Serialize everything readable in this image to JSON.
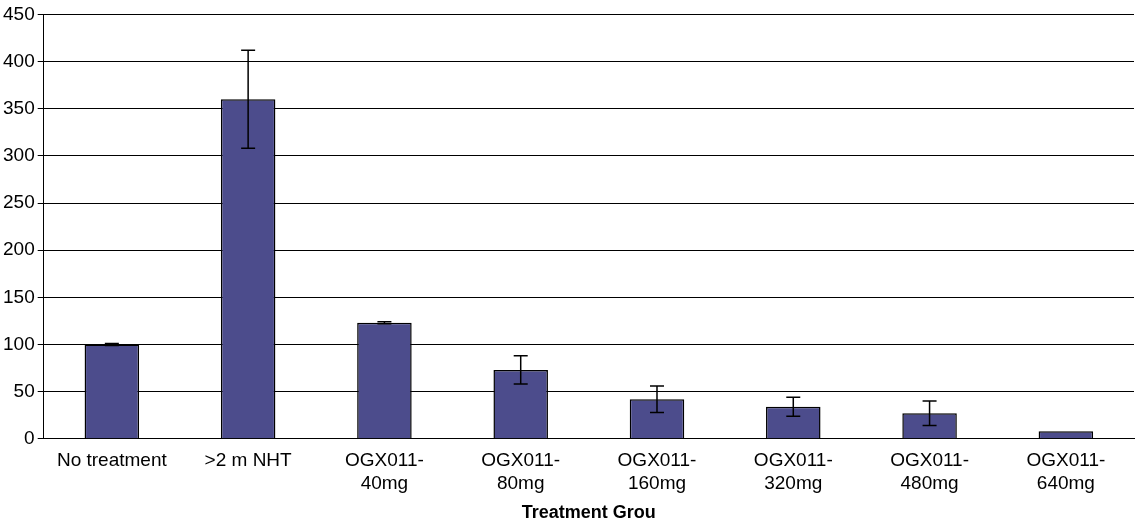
{
  "chart_data": {
    "type": "bar",
    "xlabel": "Treatment Grou",
    "categories": [
      "No treatment",
      ">2 m NHT",
      "OGX011-40mg",
      "OGX011-80mg",
      "OGX011-160mg",
      "OGX011-320mg",
      "OGX011-480mg",
      "OGX011-640mg"
    ],
    "values": [
      100,
      360,
      123,
      73,
      42,
      34,
      27,
      8
    ],
    "errors": [
      1,
      52,
      1,
      15,
      14,
      10,
      13,
      null
    ],
    "color": "#4c4c8c",
    "ylim": [
      0,
      450
    ],
    "yticks": [
      0,
      50,
      100,
      150,
      200,
      250,
      300,
      350,
      400,
      450
    ],
    "grid": "y",
    "legend": false
  }
}
